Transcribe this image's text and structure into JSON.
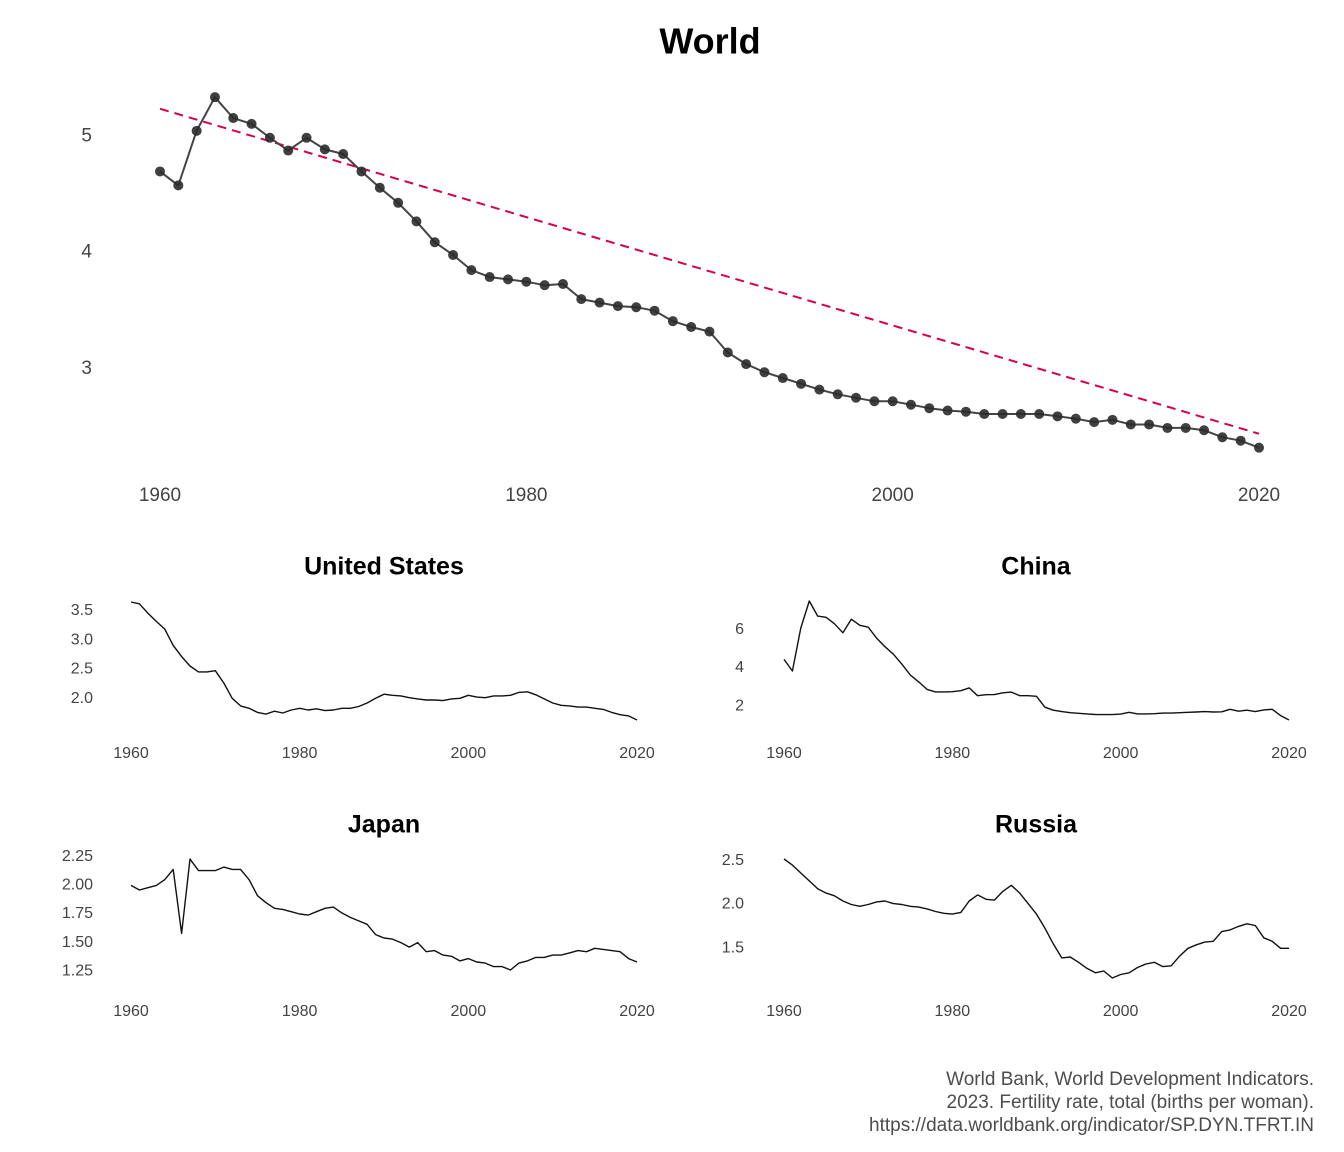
{
  "chart_data": [
    {
      "type": "line",
      "title": "World",
      "xlabel": "",
      "ylabel": "",
      "x_ticks": [
        1960,
        1980,
        2000,
        2020
      ],
      "y_ticks": [
        3,
        4,
        5
      ],
      "xlim": [
        1960,
        2020
      ],
      "ylim": [
        2.3,
        5.35
      ],
      "grid": false,
      "markers": true,
      "trend_line": {
        "style": "dashed",
        "color": "#d6004f",
        "start": [
          1960,
          5.24
        ],
        "end": [
          2020,
          2.44
        ]
      },
      "x": [
        1960,
        1961,
        1962,
        1963,
        1964,
        1965,
        1966,
        1967,
        1968,
        1969,
        1970,
        1971,
        1972,
        1973,
        1974,
        1975,
        1976,
        1977,
        1978,
        1979,
        1980,
        1981,
        1982,
        1983,
        1984,
        1985,
        1986,
        1987,
        1988,
        1989,
        1990,
        1991,
        1992,
        1993,
        1994,
        1995,
        1996,
        1997,
        1998,
        1999,
        2000,
        2001,
        2002,
        2003,
        2004,
        2005,
        2006,
        2007,
        2008,
        2009,
        2010,
        2011,
        2012,
        2013,
        2014,
        2015,
        2016,
        2017,
        2018,
        2019,
        2020
      ],
      "values": [
        4.7,
        4.58,
        5.05,
        5.34,
        5.16,
        5.11,
        4.99,
        4.88,
        4.99,
        4.89,
        4.85,
        4.7,
        4.56,
        4.43,
        4.27,
        4.09,
        3.98,
        3.85,
        3.79,
        3.77,
        3.75,
        3.72,
        3.73,
        3.6,
        3.57,
        3.54,
        3.53,
        3.5,
        3.41,
        3.36,
        3.32,
        3.14,
        3.04,
        2.97,
        2.92,
        2.87,
        2.82,
        2.78,
        2.75,
        2.72,
        2.72,
        2.69,
        2.66,
        2.64,
        2.63,
        2.61,
        2.61,
        2.61,
        2.61,
        2.59,
        2.57,
        2.54,
        2.56,
        2.52,
        2.52,
        2.49,
        2.49,
        2.47,
        2.41,
        2.38,
        2.32
      ]
    },
    {
      "type": "line",
      "title": "United States",
      "x_ticks": [
        1960,
        1980,
        2000,
        2020
      ],
      "y_ticks": [
        2.0,
        2.5,
        3.0,
        3.5
      ],
      "y_tick_labels": [
        "2.0",
        "2.5",
        "3.0",
        "3.5"
      ],
      "xlim": [
        1960,
        2020
      ],
      "ylim": [
        1.64,
        3.65
      ],
      "x": [
        1960,
        1961,
        1962,
        1963,
        1964,
        1965,
        1966,
        1967,
        1968,
        1969,
        1970,
        1971,
        1972,
        1973,
        1974,
        1975,
        1976,
        1977,
        1978,
        1979,
        1980,
        1981,
        1982,
        1983,
        1984,
        1985,
        1986,
        1987,
        1988,
        1989,
        1990,
        1991,
        1992,
        1993,
        1994,
        1995,
        1996,
        1997,
        1998,
        1999,
        2000,
        2001,
        2002,
        2003,
        2004,
        2005,
        2006,
        2007,
        2008,
        2009,
        2010,
        2011,
        2012,
        2013,
        2014,
        2015,
        2016,
        2017,
        2018,
        2019,
        2020
      ],
      "values": [
        3.65,
        3.62,
        3.46,
        3.32,
        3.19,
        2.91,
        2.72,
        2.56,
        2.46,
        2.46,
        2.48,
        2.27,
        2.01,
        1.88,
        1.84,
        1.77,
        1.74,
        1.79,
        1.76,
        1.81,
        1.84,
        1.81,
        1.83,
        1.8,
        1.81,
        1.84,
        1.84,
        1.87,
        1.93,
        2.01,
        2.08,
        2.06,
        2.05,
        2.02,
        2.0,
        1.98,
        1.98,
        1.97,
        2.0,
        2.01,
        2.06,
        2.03,
        2.02,
        2.05,
        2.05,
        2.06,
        2.11,
        2.12,
        2.07,
        2.0,
        1.93,
        1.89,
        1.88,
        1.86,
        1.86,
        1.84,
        1.82,
        1.77,
        1.73,
        1.71,
        1.64
      ]
    },
    {
      "type": "line",
      "title": "China",
      "x_ticks": [
        1960,
        1980,
        2000,
        2020
      ],
      "y_ticks": [
        2,
        4,
        6
      ],
      "xlim": [
        1960,
        2020
      ],
      "ylim": [
        1.28,
        7.5
      ],
      "x": [
        1960,
        1961,
        1962,
        1963,
        1964,
        1965,
        1966,
        1967,
        1968,
        1969,
        1970,
        1971,
        1972,
        1973,
        1974,
        1975,
        1976,
        1977,
        1978,
        1979,
        1980,
        1981,
        1982,
        1983,
        1984,
        1985,
        1986,
        1987,
        1988,
        1989,
        1990,
        1991,
        1992,
        1993,
        1994,
        1995,
        1996,
        1997,
        1998,
        1999,
        2000,
        2001,
        2002,
        2003,
        2004,
        2005,
        2006,
        2007,
        2008,
        2009,
        2010,
        2011,
        2012,
        2013,
        2014,
        2015,
        2016,
        2017,
        2018,
        2019,
        2020
      ],
      "values": [
        4.45,
        3.84,
        6.09,
        7.5,
        6.71,
        6.65,
        6.31,
        5.84,
        6.55,
        6.23,
        6.13,
        5.56,
        5.11,
        4.72,
        4.2,
        3.63,
        3.27,
        2.88,
        2.75,
        2.75,
        2.76,
        2.81,
        2.96,
        2.55,
        2.6,
        2.61,
        2.7,
        2.74,
        2.55,
        2.55,
        2.52,
        1.95,
        1.79,
        1.72,
        1.66,
        1.63,
        1.6,
        1.57,
        1.56,
        1.56,
        1.59,
        1.68,
        1.6,
        1.6,
        1.61,
        1.64,
        1.64,
        1.66,
        1.68,
        1.7,
        1.72,
        1.7,
        1.71,
        1.84,
        1.74,
        1.79,
        1.72,
        1.81,
        1.84,
        1.51,
        1.28
      ]
    },
    {
      "type": "line",
      "title": "Japan",
      "x_ticks": [
        1960,
        1980,
        2000,
        2020
      ],
      "y_ticks": [
        1.25,
        1.5,
        1.75,
        2.0,
        2.25
      ],
      "y_tick_labels": [
        "1.25",
        "1.50",
        "1.75",
        "2.00",
        "2.25"
      ],
      "xlim": [
        1960,
        2020
      ],
      "ylim": [
        1.26,
        2.24
      ],
      "x": [
        1960,
        1961,
        1962,
        1963,
        1964,
        1965,
        1966,
        1967,
        1968,
        1969,
        1970,
        1971,
        1972,
        1973,
        1974,
        1975,
        1976,
        1977,
        1978,
        1979,
        1980,
        1981,
        1982,
        1983,
        1984,
        1985,
        1986,
        1987,
        1988,
        1989,
        1990,
        1991,
        1992,
        1993,
        1994,
        1995,
        1996,
        1997,
        1998,
        1999,
        2000,
        2001,
        2002,
        2003,
        2004,
        2005,
        2006,
        2007,
        2008,
        2009,
        2010,
        2011,
        2012,
        2013,
        2014,
        2015,
        2016,
        2017,
        2018,
        2019,
        2020
      ],
      "values": [
        2.0,
        1.96,
        1.98,
        2.0,
        2.05,
        2.14,
        1.58,
        2.23,
        2.13,
        2.13,
        2.13,
        2.16,
        2.14,
        2.14,
        2.05,
        1.91,
        1.85,
        1.8,
        1.79,
        1.77,
        1.75,
        1.74,
        1.77,
        1.8,
        1.81,
        1.76,
        1.72,
        1.69,
        1.66,
        1.57,
        1.54,
        1.53,
        1.5,
        1.46,
        1.5,
        1.42,
        1.43,
        1.39,
        1.38,
        1.34,
        1.36,
        1.33,
        1.32,
        1.29,
        1.29,
        1.26,
        1.32,
        1.34,
        1.37,
        1.37,
        1.39,
        1.39,
        1.41,
        1.43,
        1.42,
        1.45,
        1.44,
        1.43,
        1.42,
        1.36,
        1.33
      ]
    },
    {
      "type": "line",
      "title": "Russia",
      "x_ticks": [
        1960,
        1980,
        2000,
        2020
      ],
      "y_ticks": [
        1.5,
        2.0,
        2.5
      ],
      "y_tick_labels": [
        "1.5",
        "2.0",
        "2.5"
      ],
      "xlim": [
        1960,
        2020
      ],
      "ylim": [
        1.16,
        2.52
      ],
      "x": [
        1960,
        1961,
        1962,
        1963,
        1964,
        1965,
        1966,
        1967,
        1968,
        1969,
        1970,
        1971,
        1972,
        1973,
        1974,
        1975,
        1976,
        1977,
        1978,
        1979,
        1980,
        1981,
        1982,
        1983,
        1984,
        1985,
        1986,
        1987,
        1988,
        1989,
        1990,
        1991,
        1992,
        1993,
        1994,
        1995,
        1996,
        1997,
        1998,
        1999,
        2000,
        2001,
        2002,
        2003,
        2004,
        2005,
        2006,
        2007,
        2008,
        2009,
        2010,
        2011,
        2012,
        2013,
        2014,
        2015,
        2016,
        2017,
        2018,
        2019,
        2020
      ],
      "values": [
        2.52,
        2.45,
        2.36,
        2.27,
        2.18,
        2.13,
        2.1,
        2.04,
        2.0,
        1.98,
        2.0,
        2.03,
        2.04,
        2.01,
        2.0,
        1.98,
        1.97,
        1.95,
        1.92,
        1.9,
        1.89,
        1.91,
        2.04,
        2.11,
        2.06,
        2.05,
        2.15,
        2.22,
        2.13,
        2.01,
        1.89,
        1.73,
        1.55,
        1.39,
        1.4,
        1.34,
        1.27,
        1.22,
        1.24,
        1.16,
        1.2,
        1.22,
        1.28,
        1.32,
        1.34,
        1.29,
        1.3,
        1.41,
        1.5,
        1.54,
        1.57,
        1.58,
        1.69,
        1.71,
        1.75,
        1.78,
        1.76,
        1.62,
        1.58,
        1.5,
        1.5
      ]
    }
  ],
  "caption": {
    "line1": "World Bank, World Development Indicators.",
    "line2": "2023. Fertility rate, total (births per woman).",
    "line3": "https://data.worldbank.org/indicator/SP.DYN.TFRT.IN"
  }
}
